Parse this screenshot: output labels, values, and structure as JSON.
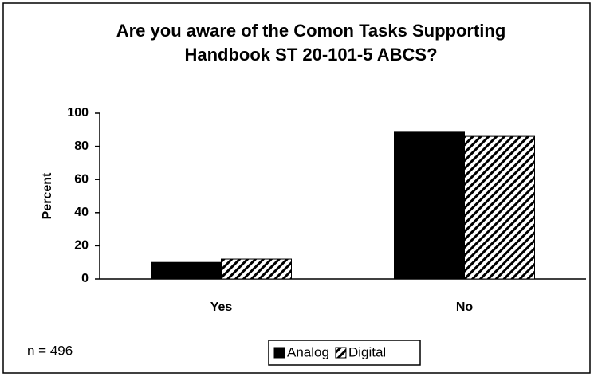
{
  "chart_data": {
    "type": "bar",
    "title": "Are you aware of the Comon Tasks Supporting Handbook ST 20-101-5 ABCS?",
    "y_label": "Percent",
    "annotation": "n = 496",
    "categories": [
      "Yes",
      "No"
    ],
    "series": [
      {
        "name": "Analog",
        "color": "#000000",
        "pattern": "solid",
        "values": [
          10,
          89
        ]
      },
      {
        "name": "Digital",
        "color": "#000000",
        "pattern": "hatch",
        "values": [
          12,
          86
        ]
      }
    ],
    "ylim": [
      0,
      100
    ],
    "yticks": [
      0,
      20,
      40,
      60,
      80,
      100
    ],
    "grid": false,
    "legend": "bottom"
  }
}
